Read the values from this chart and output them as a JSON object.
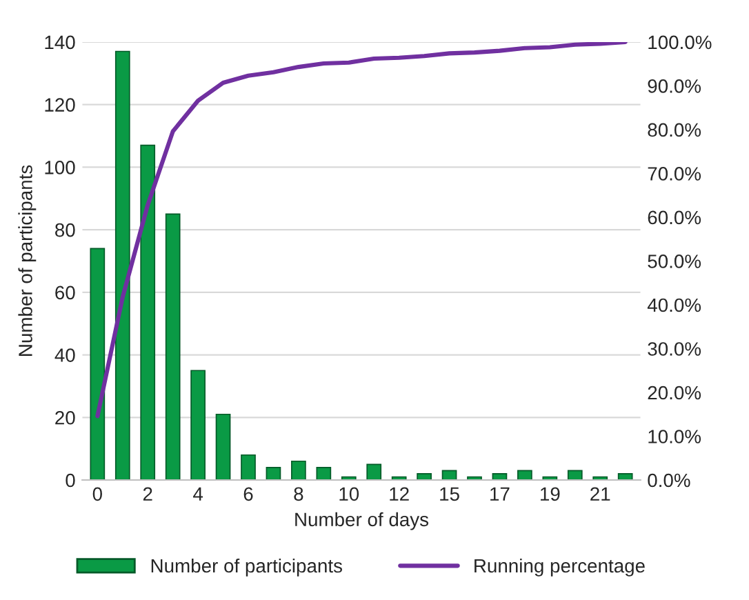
{
  "chart_data": {
    "type": "bar",
    "xlabel": "Number of days",
    "ylabel": "Number of participants",
    "categories": [
      "0",
      null,
      "2",
      null,
      "4",
      null,
      "6",
      null,
      "8",
      null,
      "10",
      null,
      "12",
      null,
      "15",
      null,
      "17",
      null,
      "19",
      null,
      "21",
      null
    ],
    "series": [
      {
        "name": "Number of participants",
        "color": "#0a9a45",
        "values": [
          74,
          137,
          107,
          85,
          35,
          21,
          8,
          4,
          6,
          4,
          1,
          5,
          1,
          2,
          3,
          1,
          2,
          3,
          1,
          3,
          1,
          2
        ]
      },
      {
        "name": "Running percentage",
        "type": "line",
        "axis": "y2",
        "color": "#7030a0",
        "values": [
          14.6,
          41.7,
          62.8,
          79.6,
          86.6,
          90.7,
          92.3,
          93.1,
          94.3,
          95.1,
          95.3,
          96.2,
          96.4,
          96.8,
          97.4,
          97.6,
          98.0,
          98.6,
          98.8,
          99.4,
          99.6,
          100.0
        ]
      }
    ],
    "ylim": [
      0,
      140
    ],
    "yticks": [
      0,
      20,
      40,
      60,
      80,
      100,
      120,
      140
    ],
    "y2lim": [
      0,
      100
    ],
    "y2ticks": [
      {
        "value": 0,
        "label": "0.0%"
      },
      {
        "value": 10,
        "label": "10.0%"
      },
      {
        "value": 20,
        "label": "20.0%"
      },
      {
        "value": 30,
        "label": "30.0%"
      },
      {
        "value": 40,
        "label": "40.0%"
      },
      {
        "value": 50,
        "label": "50.0%"
      },
      {
        "value": 60,
        "label": "60.0%"
      },
      {
        "value": 70,
        "label": "70.0%"
      },
      {
        "value": 80,
        "label": "80.0%"
      },
      {
        "value": 90,
        "label": "90.0%"
      },
      {
        "value": 100,
        "label": "100.0%"
      }
    ],
    "grid": "y",
    "legend": "bottom",
    "marker": "none",
    "line_style": "solid"
  }
}
